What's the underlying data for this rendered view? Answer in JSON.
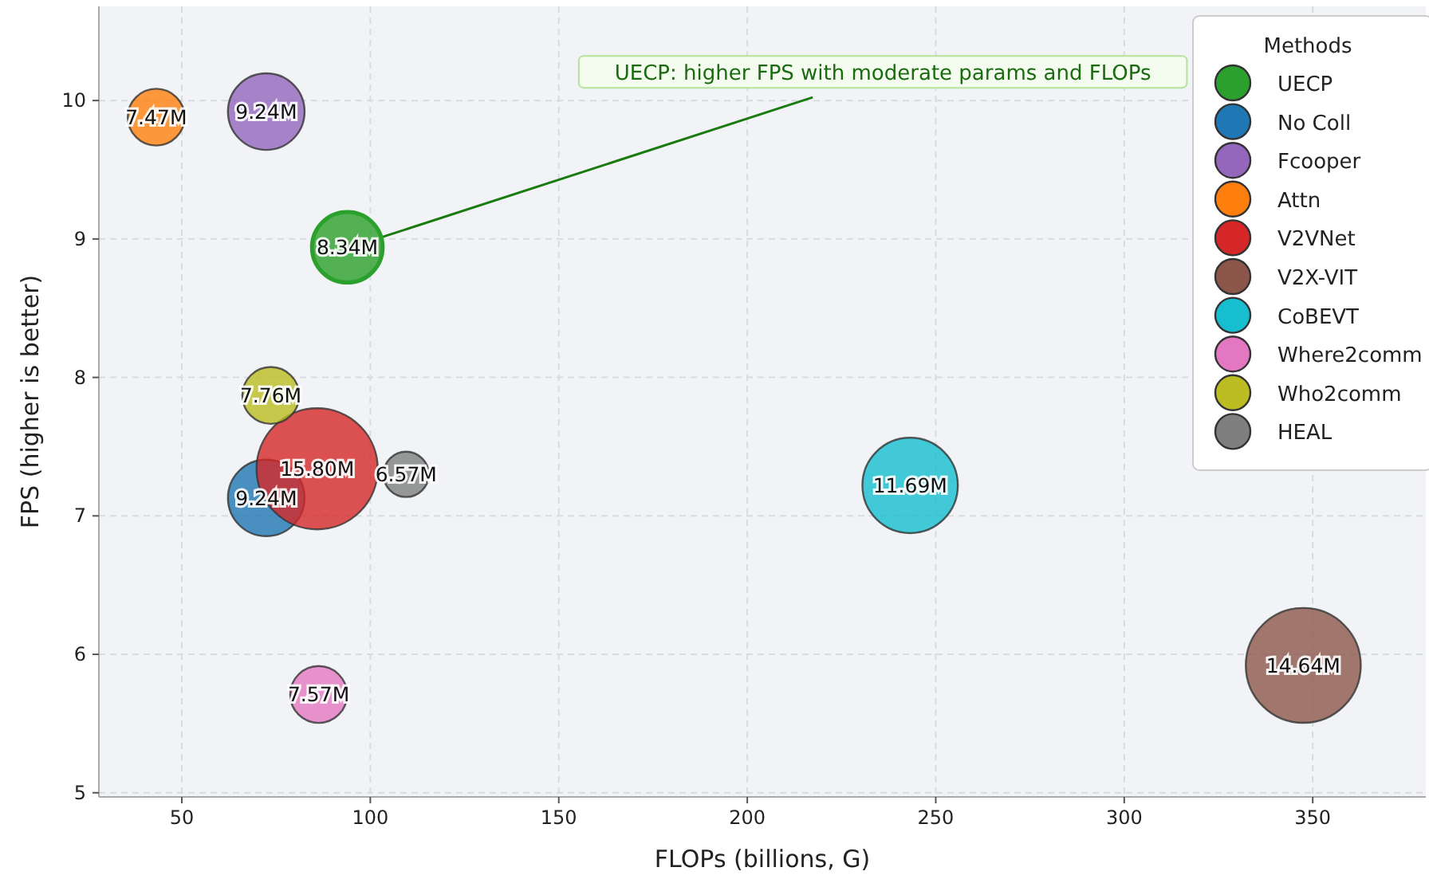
{
  "chart_data": {
    "type": "bubble",
    "xlabel": "FLOPs (billions, G)",
    "ylabel": "FPS (higher is better)",
    "legend_title": "Methods",
    "legend": "top right",
    "grid": true,
    "marker": "circle",
    "xlim": [
      28,
      380
    ],
    "xticks": [
      50,
      100,
      150,
      200,
      250,
      300,
      350
    ],
    "ylim": [
      4.97,
      10.68
    ],
    "yticks": [
      5,
      6,
      7,
      8,
      9,
      10
    ],
    "annotations": [
      {
        "text": "UECP: higher FPS with moderate params and FLOPs",
        "x": 102.7,
        "y": 9.01
      },
      {
        "text": "8.34M",
        "x": 93.9,
        "y": 8.94
      },
      {
        "text": "9.24M",
        "x": 72.4,
        "y": 7.13
      },
      {
        "text": "9.24M",
        "x": 72.4,
        "y": 9.92
      },
      {
        "text": "7.47M",
        "x": 43.2,
        "y": 9.88
      },
      {
        "text": "15.80M",
        "x": 85.9,
        "y": 7.34
      },
      {
        "text": "14.64M",
        "x": 347.5,
        "y": 5.92
      },
      {
        "text": "11.69M",
        "x": 243.2,
        "y": 7.22
      },
      {
        "text": "7.57M",
        "x": 86.3,
        "y": 5.71
      },
      {
        "text": "7.76M",
        "x": 73.6,
        "y": 7.87
      },
      {
        "text": "6.57M",
        "x": 109.5,
        "y": 7.3
      }
    ],
    "series": [
      {
        "name": "UECP",
        "color": "#2ca02c",
        "x": [
          93.9
        ],
        "values": [
          8.94
        ],
        "sizes": [
          0.34
        ]
      },
      {
        "name": "No Coll",
        "color": "#1f77b4",
        "x": [
          72.4
        ],
        "values": [
          7.13
        ],
        "sizes": [
          0.4
        ]
      },
      {
        "name": "Fcooper",
        "color": "#9467bd",
        "x": [
          72.4
        ],
        "values": [
          9.92
        ],
        "sizes": [
          0.4
        ]
      },
      {
        "name": "Attn",
        "color": "#ff7f0e",
        "x": [
          43.2
        ],
        "values": [
          9.88
        ],
        "sizes": [
          0.22
        ]
      },
      {
        "name": "V2VNet",
        "color": "#d62728",
        "x": [
          85.9
        ],
        "values": [
          7.34
        ],
        "sizes": [
          1
        ]
      },
      {
        "name": "V2X-VIT",
        "color": "#8c564b",
        "x": [
          347.5
        ],
        "values": [
          5.92
        ],
        "sizes": [
          0.9
        ]
      },
      {
        "name": "CoBEVT",
        "color": "#17becf",
        "x": [
          243.2
        ],
        "values": [
          7.22
        ],
        "sizes": [
          0.62
        ]
      },
      {
        "name": "Where2comm",
        "color": "#e377c2",
        "x": [
          86.3
        ],
        "values": [
          5.71
        ],
        "sizes": [
          0.22
        ]
      },
      {
        "name": "Who2comm",
        "color": "#bcbd22",
        "x": [
          73.6
        ],
        "values": [
          7.87
        ],
        "sizes": [
          0.22
        ]
      },
      {
        "name": "HEAL",
        "color": "#7f7f7f",
        "x": [
          109.5
        ],
        "values": [
          7.3
        ],
        "sizes": [
          0.14
        ]
      }
    ]
  }
}
